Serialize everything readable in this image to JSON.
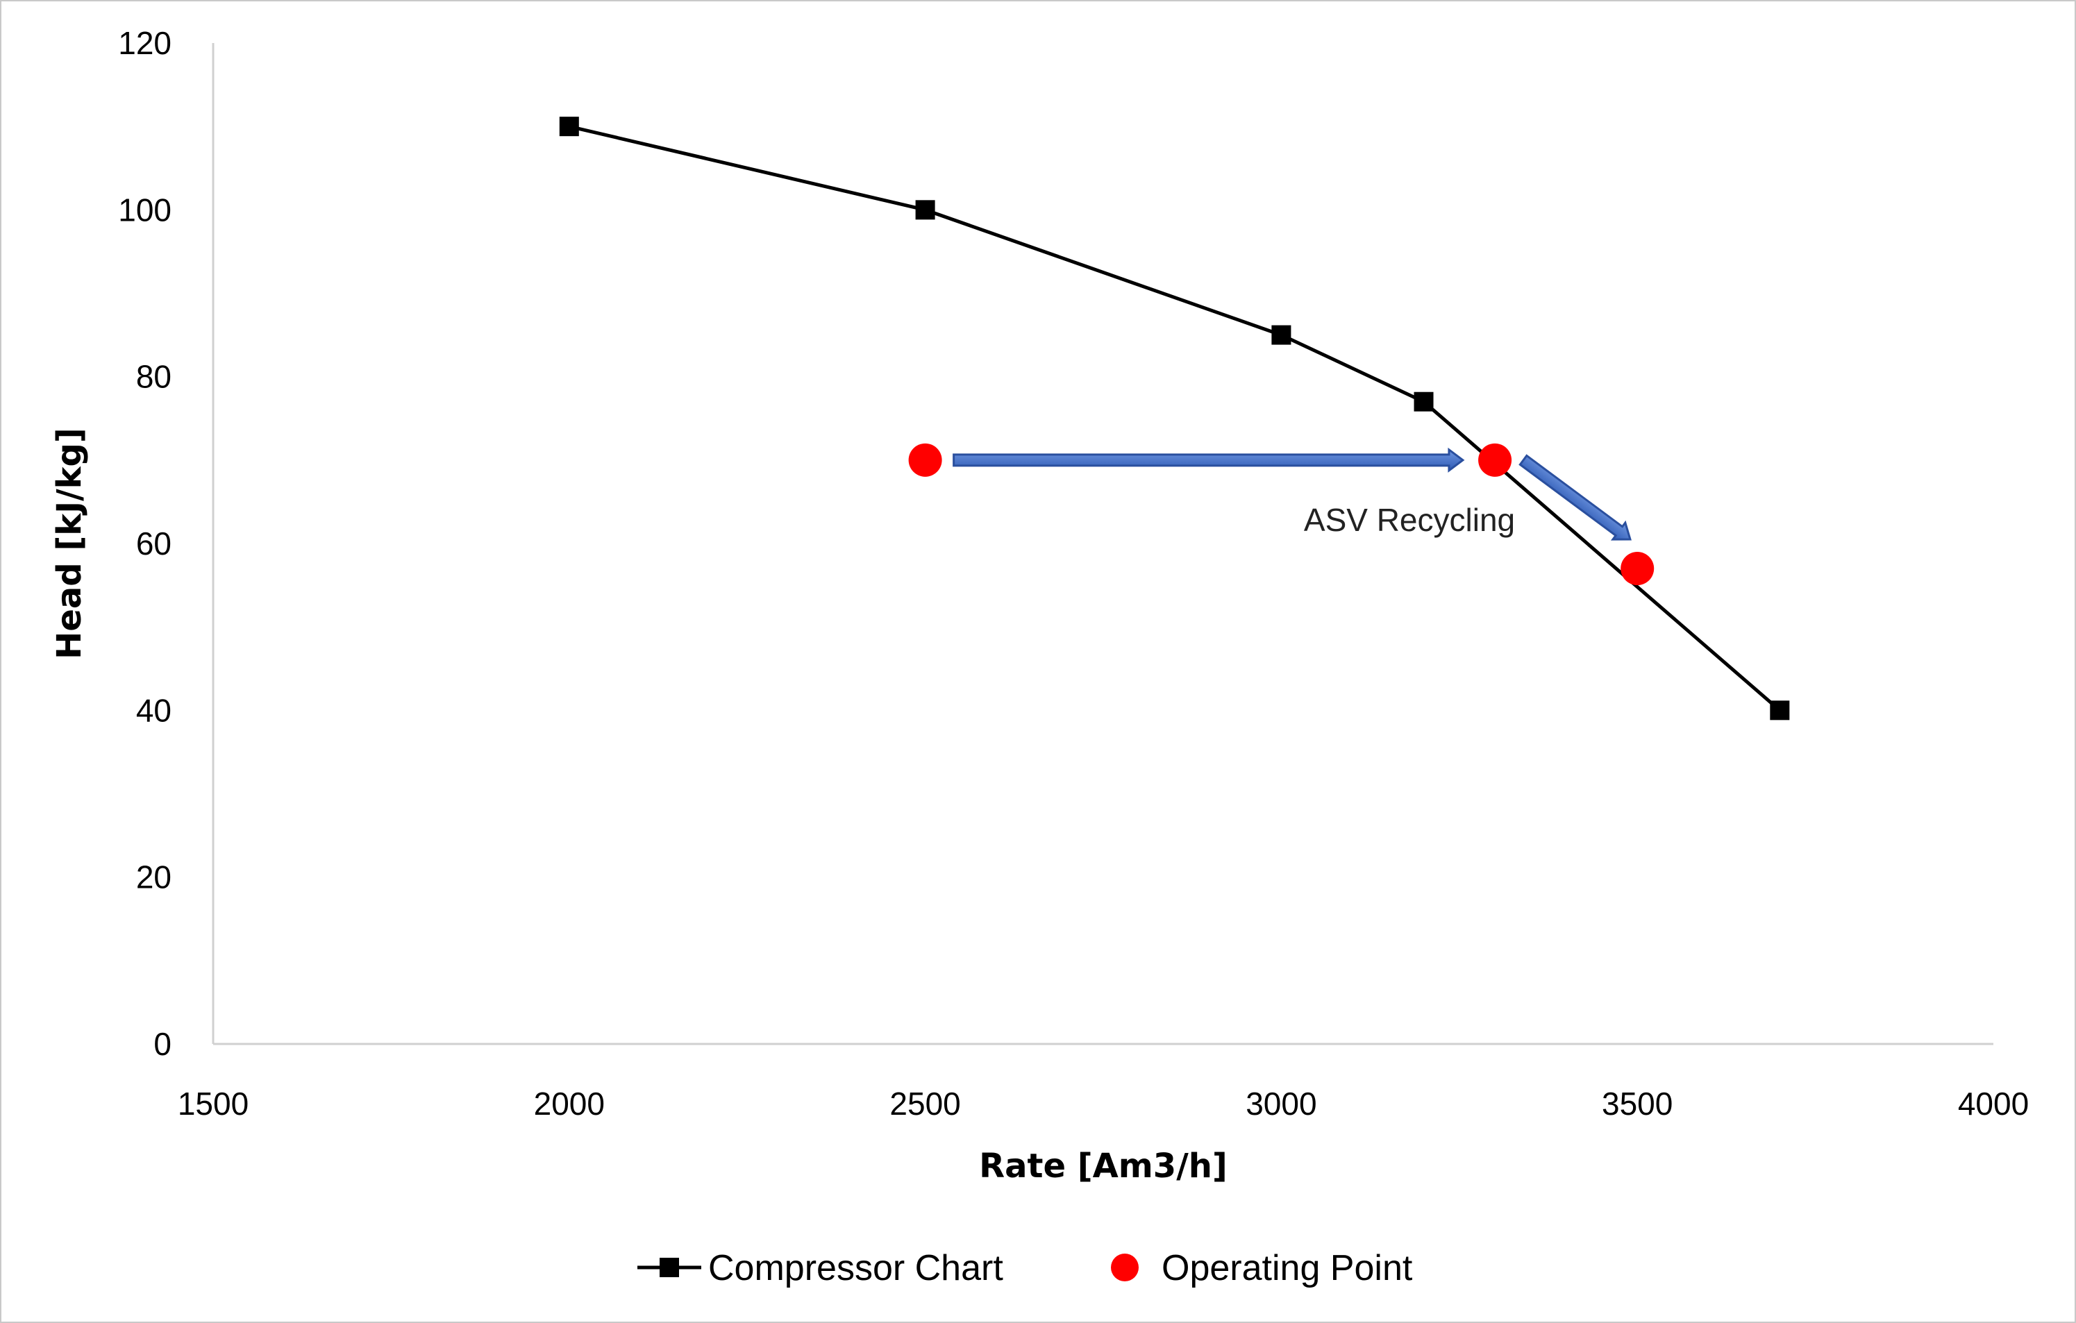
{
  "chart_data": {
    "type": "scatter",
    "xlabel": "Rate [Am3/h]",
    "ylabel": "Head [kJ/kg]",
    "xlim": [
      1500,
      4000
    ],
    "ylim": [
      0,
      120
    ],
    "x_ticks": [
      1500,
      2000,
      2500,
      3000,
      3500,
      4000
    ],
    "y_ticks": [
      0,
      20,
      40,
      60,
      80,
      100,
      120
    ],
    "grid": false,
    "legend_position": "bottom",
    "series": [
      {
        "name": "Compressor Chart",
        "style": "line-with-square-markers",
        "color": "#000000",
        "points": [
          {
            "x": 2000,
            "y": 110
          },
          {
            "x": 2500,
            "y": 100
          },
          {
            "x": 3000,
            "y": 85
          },
          {
            "x": 3200,
            "y": 77
          },
          {
            "x": 3700,
            "y": 40
          }
        ]
      },
      {
        "name": "Operating Point",
        "style": "circle-markers",
        "color": "#ff0000",
        "points": [
          {
            "x": 2500,
            "y": 70
          },
          {
            "x": 3300,
            "y": 70
          },
          {
            "x": 3500,
            "y": 57
          }
        ]
      }
    ],
    "annotations": [
      {
        "text": "ASV Recycling",
        "x": 3180,
        "y": 61.5
      }
    ],
    "arrows": [
      {
        "from": {
          "x": 2540,
          "y": 70
        },
        "to": {
          "x": 3255,
          "y": 70
        },
        "color": "#4472c4"
      },
      {
        "from": {
          "x": 3340,
          "y": 70
        },
        "to": {
          "x": 3490,
          "y": 60.5
        },
        "color": "#4472c4"
      }
    ]
  }
}
